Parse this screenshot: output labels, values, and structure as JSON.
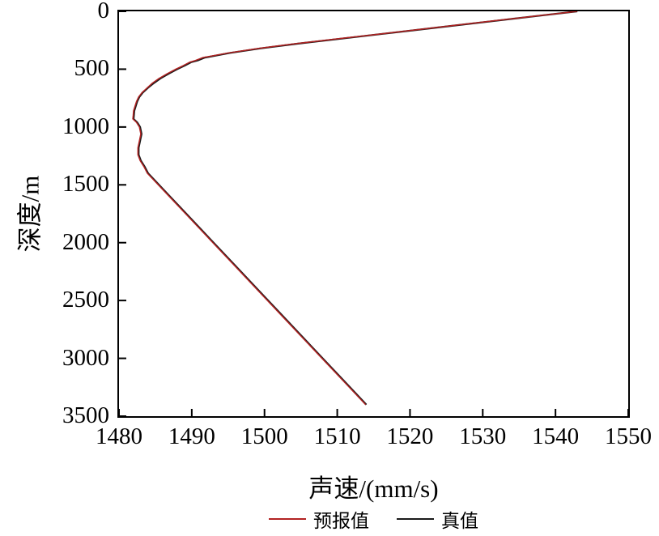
{
  "chart_data": {
    "type": "line",
    "title": "",
    "xlabel": "声速/(mm/s)",
    "ylabel": "深度/m",
    "xlim": [
      1480,
      1550
    ],
    "ylim": [
      0,
      3500
    ],
    "y_inverted": true,
    "grid": false,
    "xticks": [
      "1480",
      "1490",
      "1500",
      "1510",
      "1520",
      "1530",
      "1540",
      "1550"
    ],
    "yticks": [
      "0",
      "500",
      "1000",
      "1500",
      "2000",
      "2500",
      "3000",
      "3500"
    ],
    "series": [
      {
        "name": "真值",
        "color": "#1a1a1a",
        "width": 2.2,
        "points": [
          [
            0,
            1543
          ],
          [
            40,
            1537.5
          ],
          [
            80,
            1532
          ],
          [
            120,
            1526.5
          ],
          [
            160,
            1521
          ],
          [
            200,
            1515.5
          ],
          [
            240,
            1510
          ],
          [
            280,
            1504.5
          ],
          [
            320,
            1499.5
          ],
          [
            360,
            1495.2
          ],
          [
            400,
            1491.8
          ],
          [
            425,
            1490.8
          ],
          [
            440,
            1489.9
          ],
          [
            470,
            1489.0
          ],
          [
            500,
            1488.0
          ],
          [
            540,
            1486.8
          ],
          [
            580,
            1485.7
          ],
          [
            620,
            1484.8
          ],
          [
            660,
            1484.0
          ],
          [
            700,
            1483.3
          ],
          [
            740,
            1482.8
          ],
          [
            780,
            1482.5
          ],
          [
            820,
            1482.3
          ],
          [
            860,
            1482.1
          ],
          [
            900,
            1482.05
          ],
          [
            930,
            1482.0
          ],
          [
            960,
            1482.5
          ],
          [
            1000,
            1482.9
          ],
          [
            1060,
            1483.1
          ],
          [
            1120,
            1482.9
          ],
          [
            1180,
            1482.7
          ],
          [
            1240,
            1482.7
          ],
          [
            1290,
            1483.0
          ],
          [
            1340,
            1483.5
          ],
          [
            1400,
            1484.0
          ],
          [
            1600,
            1487.0
          ],
          [
            1800,
            1490.0
          ],
          [
            2000,
            1493.0
          ],
          [
            2200,
            1496.0
          ],
          [
            2400,
            1499.0
          ],
          [
            2600,
            1502.0
          ],
          [
            2800,
            1505.0
          ],
          [
            3000,
            1508.0
          ],
          [
            3200,
            1511.0
          ],
          [
            3400,
            1514.0
          ]
        ]
      },
      {
        "name": "预报值",
        "color": "#b22222",
        "width": 1.5,
        "points": [
          [
            0,
            1543
          ],
          [
            40,
            1537.3
          ],
          [
            80,
            1531.8
          ],
          [
            120,
            1526.3
          ],
          [
            160,
            1520.8
          ],
          [
            200,
            1515.3
          ],
          [
            240,
            1509.7
          ],
          [
            280,
            1504.2
          ],
          [
            320,
            1499.2
          ],
          [
            360,
            1495.0
          ],
          [
            400,
            1491.5
          ],
          [
            425,
            1490.5
          ],
          [
            440,
            1489.7
          ],
          [
            470,
            1488.8
          ],
          [
            500,
            1487.8
          ],
          [
            540,
            1486.6
          ],
          [
            580,
            1485.5
          ],
          [
            620,
            1484.6
          ],
          [
            660,
            1483.9
          ],
          [
            700,
            1483.2
          ],
          [
            740,
            1482.7
          ],
          [
            780,
            1482.4
          ],
          [
            820,
            1482.2
          ],
          [
            860,
            1482.0
          ],
          [
            900,
            1481.95
          ],
          [
            930,
            1481.9
          ],
          [
            960,
            1482.4
          ],
          [
            1000,
            1482.8
          ],
          [
            1060,
            1483.0
          ],
          [
            1120,
            1482.8
          ],
          [
            1180,
            1482.6
          ],
          [
            1240,
            1482.6
          ],
          [
            1290,
            1482.9
          ],
          [
            1340,
            1483.4
          ],
          [
            1400,
            1483.9
          ],
          [
            1600,
            1486.9
          ],
          [
            1800,
            1489.9
          ],
          [
            2000,
            1492.9
          ],
          [
            2200,
            1495.9
          ],
          [
            2400,
            1498.9
          ],
          [
            2600,
            1501.9
          ],
          [
            2800,
            1504.9
          ],
          [
            3000,
            1507.9
          ],
          [
            3200,
            1510.9
          ],
          [
            3400,
            1513.9
          ]
        ]
      }
    ],
    "legend": {
      "position": "bottom",
      "entries": [
        {
          "label": "预报值",
          "color": "#b22222"
        },
        {
          "label": "真值",
          "color": "#1a1a1a"
        }
      ]
    }
  }
}
